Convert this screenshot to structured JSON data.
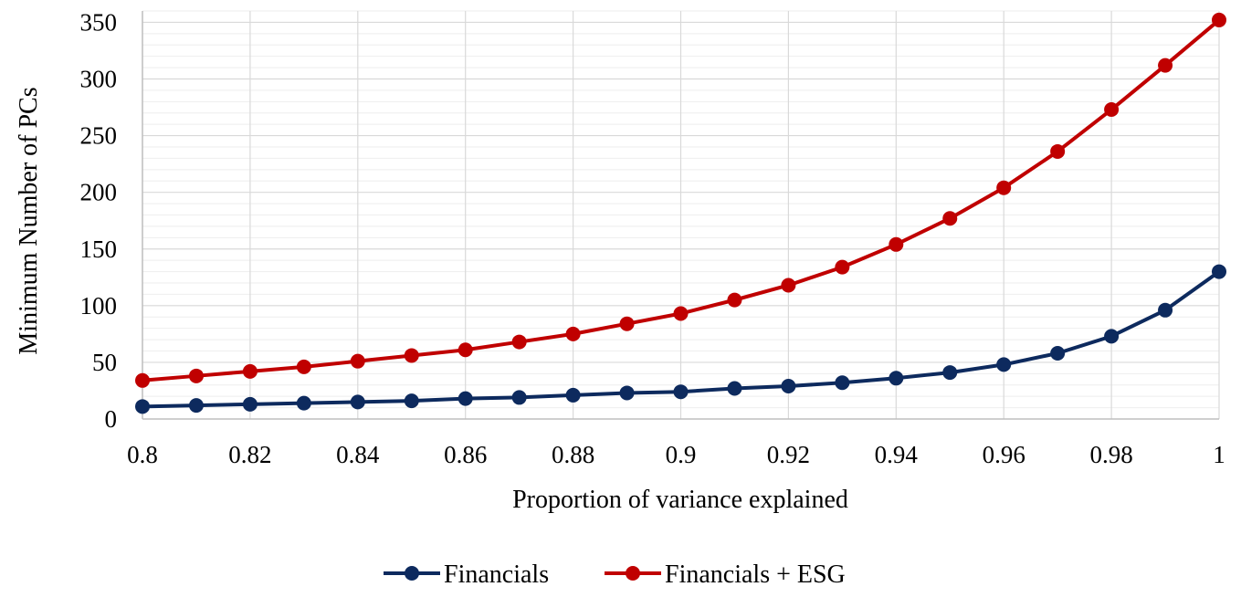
{
  "chart_data": {
    "type": "line",
    "title": "",
    "xlabel": "Proportion of variance explained",
    "ylabel": "Minimum Number of PCs",
    "xlim": [
      0.8,
      1.0
    ],
    "ylim": [
      0,
      360
    ],
    "x": [
      0.8,
      0.81,
      0.82,
      0.83,
      0.84,
      0.85,
      0.86,
      0.87,
      0.88,
      0.89,
      0.9,
      0.91,
      0.92,
      0.93,
      0.94,
      0.95,
      0.96,
      0.97,
      0.98,
      0.99,
      1.0
    ],
    "x_ticks": [
      0.8,
      0.82,
      0.84,
      0.86,
      0.88,
      0.9,
      0.92,
      0.94,
      0.96,
      0.98,
      1.0
    ],
    "x_tick_labels": [
      "0.8",
      "0.82",
      "0.84",
      "0.86",
      "0.88",
      "0.9",
      "0.92",
      "0.94",
      "0.96",
      "0.98",
      "1"
    ],
    "y_ticks": [
      0,
      50,
      100,
      150,
      200,
      250,
      300,
      350
    ],
    "y_tick_labels": [
      "0",
      "50",
      "100",
      "150",
      "200",
      "250",
      "300",
      "350"
    ],
    "y_minor_step": 10,
    "grid": true,
    "legend_position": "bottom",
    "series": [
      {
        "name": "Financials",
        "color": "#0d2a5e",
        "values": [
          11,
          12,
          13,
          14,
          15,
          16,
          18,
          19,
          21,
          23,
          24,
          27,
          29,
          32,
          36,
          41,
          48,
          58,
          73,
          96,
          130
        ]
      },
      {
        "name": "Financials + ESG",
        "color": "#c00000",
        "values": [
          34,
          38,
          42,
          46,
          51,
          56,
          61,
          68,
          75,
          84,
          93,
          105,
          118,
          134,
          154,
          177,
          204,
          236,
          273,
          312,
          352
        ]
      }
    ]
  }
}
